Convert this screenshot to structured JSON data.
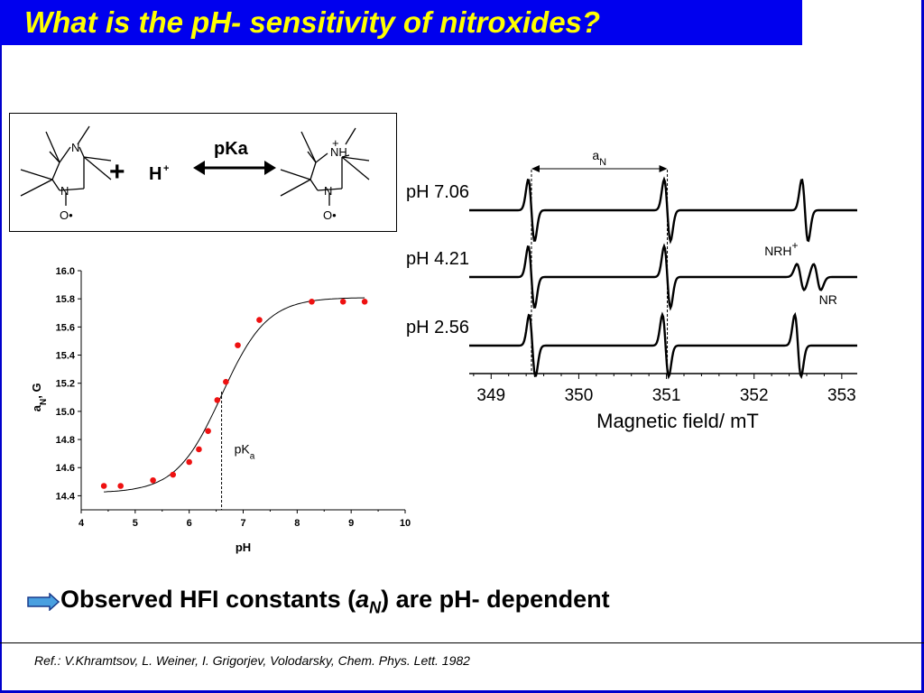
{
  "slide": {
    "title": "What is the pH- sensitivity of nitroxides?",
    "conclusion": {
      "before": "Observed HFI constants (",
      "a": "a",
      "sub": "N",
      "after": ") are pH- dependent"
    },
    "reference": "Ref.: V.Khramtsov, L. Weiner, I. Grigorjev, Volodarsky, Chem. Phys. Lett. 1982",
    "colors": {
      "title_bg": "#0000ee",
      "title_text": "#ffff00",
      "frame": "#0000cc",
      "points": "#ee1111",
      "arrow_fill": "#4aa0e0"
    },
    "icons": [
      "right-arrow-icon"
    ]
  },
  "scheme": {
    "plus": "+",
    "proton": "H",
    "proton_sup": "+",
    "equilibrium": "pKa",
    "left_atoms": {
      "n_top": "N",
      "n_bottom": "N",
      "o": "O•"
    },
    "right_atoms": {
      "nh": "NH",
      "plus": "+",
      "n_bottom": "N",
      "o": "O•"
    }
  },
  "chart_data": [
    {
      "type": "scatter",
      "title": "",
      "xlabel": "pH",
      "ylabel": "aN, G",
      "ylabel_main": "a",
      "ylabel_sub": "N",
      "ylabel_rest": ", G",
      "xlim": [
        4,
        10
      ],
      "ylim": [
        14.3,
        16.0
      ],
      "xticks": [
        4,
        5,
        6,
        7,
        8,
        9,
        10
      ],
      "yticks": [
        14.4,
        14.6,
        14.8,
        15.0,
        15.2,
        15.4,
        15.6,
        15.8,
        16.0
      ],
      "series": [
        {
          "points": [
            [
              4.42,
              14.47
            ],
            [
              4.73,
              14.47
            ],
            [
              5.33,
              14.51
            ],
            [
              5.7,
              14.55
            ],
            [
              6.0,
              14.64
            ],
            [
              6.18,
              14.73
            ],
            [
              6.35,
              14.86
            ],
            [
              6.52,
              15.08
            ],
            [
              6.68,
              15.21
            ],
            [
              6.9,
              15.47
            ],
            [
              7.3,
              15.65
            ],
            [
              8.27,
              15.78
            ],
            [
              8.85,
              15.78
            ],
            [
              9.25,
              15.78
            ]
          ]
        },
        {
          "fit": {
            "model": "sigmoid",
            "bottom": 14.42,
            "top": 15.81,
            "pKa": 6.6,
            "slope": 0.42,
            "x_from": 4.42,
            "x_to": 9.25
          }
        }
      ],
      "annotation": {
        "text": "pK",
        "sub": "a",
        "x": 6.6
      },
      "grid": false
    },
    {
      "type": "line",
      "title": "",
      "xlabel": "Magnetic field/ mT",
      "xlim": [
        348.75,
        353.3
      ],
      "xticks": [
        349,
        350,
        351,
        352,
        353
      ],
      "series": [
        {
          "name": "pH 7.06",
          "lines": [
            349.46,
            351.01,
            352.58
          ]
        },
        {
          "name": "pH 4.21",
          "lines": [
            349.46,
            351.01
          ],
          "extra": [
            {
              "center": 352.53,
              "label": "NRH",
              "label_sup": "+"
            },
            {
              "center": 352.72,
              "label": "NR"
            }
          ]
        },
        {
          "name": "pH 2.56",
          "lines": [
            349.47,
            350.99,
            352.5
          ]
        }
      ],
      "aN_label": "a",
      "aN_sub": "N",
      "grid": false
    }
  ]
}
